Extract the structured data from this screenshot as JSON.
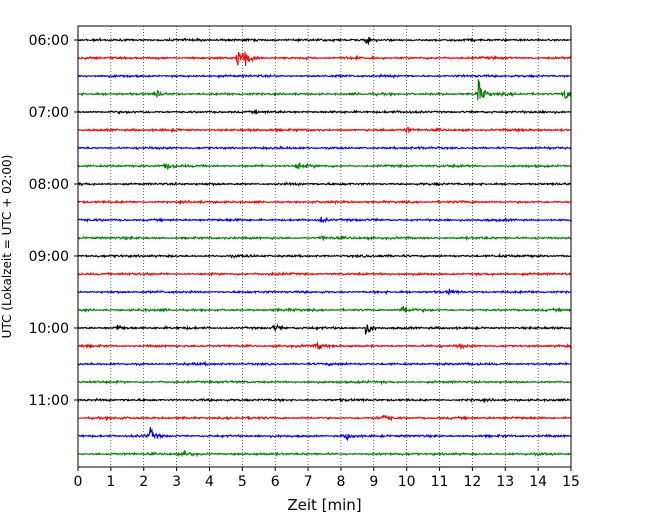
{
  "chart_data": {
    "type": "line",
    "title": "",
    "xlabel": "Zeit  [min]",
    "ylabel": "UTC (Lokalzeit = UTC + 02:00)",
    "xlim": [
      0,
      15
    ],
    "x_ticks": [
      "0",
      "1",
      "2",
      "3",
      "4",
      "5",
      "6",
      "7",
      "8",
      "9",
      "10",
      "11",
      "12",
      "13",
      "14",
      "15"
    ],
    "y_tick_labels": [
      "06:00",
      "07:00",
      "08:00",
      "09:00",
      "10:00",
      "11:00"
    ],
    "start_time": "06:00",
    "row_minutes": 15,
    "grid": "vertical dotted",
    "colors": [
      "#000000",
      "#ff0000",
      "#0000ff",
      "#008000"
    ],
    "rows": [
      {
        "start": "06:00",
        "color": "#000000",
        "events": [
          {
            "t": 8.8,
            "amp": 0.5
          }
        ]
      },
      {
        "start": "06:15",
        "color": "#ff0000",
        "events": [
          {
            "t": 4.9,
            "amp": 1.6
          },
          {
            "t": 5.1,
            "amp": 1.4
          }
        ]
      },
      {
        "start": "06:30",
        "color": "#0000ff",
        "events": []
      },
      {
        "start": "06:45",
        "color": "#008000",
        "events": [
          {
            "t": 2.4,
            "amp": 0.6
          },
          {
            "t": 12.2,
            "amp": 2.0
          },
          {
            "t": 14.8,
            "amp": 1.0
          }
        ]
      },
      {
        "start": "07:00",
        "color": "#000000",
        "events": []
      },
      {
        "start": "07:15",
        "color": "#ff0000",
        "events": [
          {
            "t": 10.0,
            "amp": 0.4
          }
        ]
      },
      {
        "start": "07:30",
        "color": "#0000ff",
        "events": []
      },
      {
        "start": "07:45",
        "color": "#008000",
        "events": [
          {
            "t": 2.7,
            "amp": 0.6
          },
          {
            "t": 6.7,
            "amp": 0.7
          }
        ]
      },
      {
        "start": "08:00",
        "color": "#000000",
        "events": []
      },
      {
        "start": "08:15",
        "color": "#ff0000",
        "events": []
      },
      {
        "start": "08:30",
        "color": "#0000ff",
        "events": [
          {
            "t": 7.4,
            "amp": 0.4
          }
        ]
      },
      {
        "start": "08:45",
        "color": "#008000",
        "events": [
          {
            "t": 7.4,
            "amp": 0.4
          }
        ]
      },
      {
        "start": "09:00",
        "color": "#000000",
        "events": []
      },
      {
        "start": "09:15",
        "color": "#ff0000",
        "events": []
      },
      {
        "start": "09:30",
        "color": "#0000ff",
        "events": [
          {
            "t": 11.3,
            "amp": 0.4
          }
        ]
      },
      {
        "start": "09:45",
        "color": "#008000",
        "events": [
          {
            "t": 9.9,
            "amp": 0.9
          }
        ]
      },
      {
        "start": "10:00",
        "color": "#000000",
        "events": [
          {
            "t": 1.2,
            "amp": 0.5
          },
          {
            "t": 6.0,
            "amp": 0.5
          },
          {
            "t": 8.8,
            "amp": 1.2
          }
        ]
      },
      {
        "start": "10:15",
        "color": "#ff0000",
        "events": [
          {
            "t": 7.3,
            "amp": 0.5
          },
          {
            "t": 11.6,
            "amp": 0.4
          }
        ]
      },
      {
        "start": "10:30",
        "color": "#0000ff",
        "events": []
      },
      {
        "start": "10:45",
        "color": "#008000",
        "events": []
      },
      {
        "start": "11:00",
        "color": "#000000",
        "events": []
      },
      {
        "start": "11:15",
        "color": "#ff0000",
        "events": [
          {
            "t": 9.3,
            "amp": 0.5
          }
        ]
      },
      {
        "start": "11:30",
        "color": "#0000ff",
        "events": [
          {
            "t": 2.2,
            "amp": 1.0
          },
          {
            "t": 8.2,
            "amp": 0.6
          }
        ]
      },
      {
        "start": "11:45",
        "color": "#008000",
        "events": [
          {
            "t": 3.3,
            "amp": 0.5
          }
        ]
      }
    ]
  }
}
